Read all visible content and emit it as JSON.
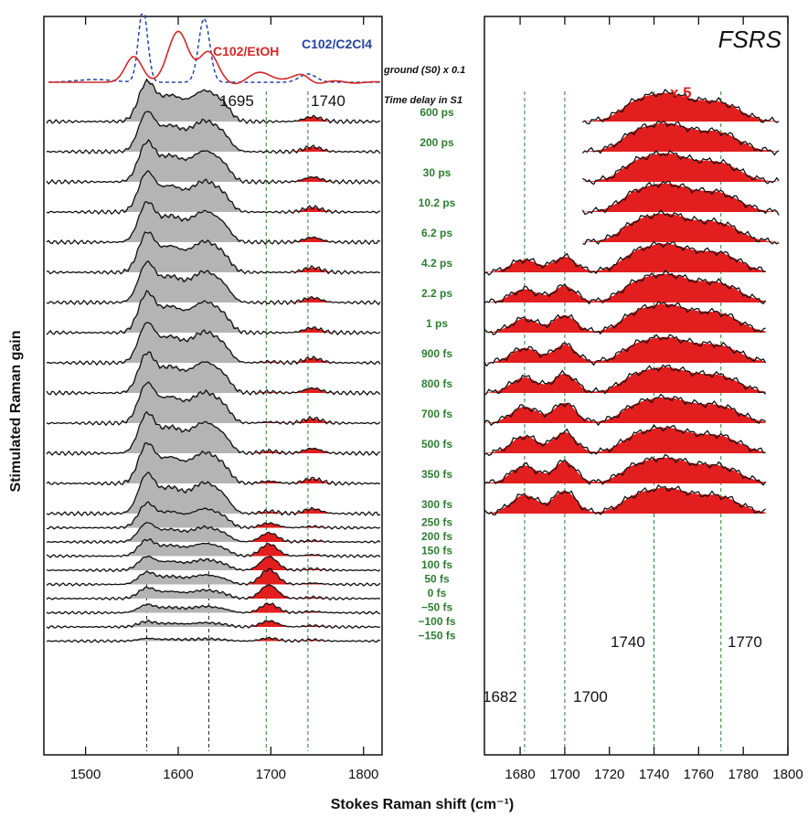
{
  "chart_data": [
    {
      "type": "line",
      "panel": "left",
      "xlabel": "Stokes Raman shift (cm⁻¹)",
      "ylabel": "Stimulated Raman gain",
      "xlim": [
        1455,
        1820
      ],
      "xticks": [
        1500,
        1600,
        1700,
        1800
      ],
      "legend": [
        {
          "name": "C102/EtOH",
          "color": "#d62728",
          "style": "solid"
        },
        {
          "name": "C102/C2Cl4",
          "color": "#2743a3",
          "style": "dashed"
        }
      ],
      "ground_state_label": "ground (S0) x 0.1",
      "time_delay_heading": "Time delay in S1",
      "peak_markers_cm1": [
        1566,
        1633,
        1695,
        1740
      ],
      "peak_labels": [
        "1695",
        "1740"
      ],
      "time_delays": [
        "600 ps",
        "200 ps",
        "30 ps",
        "10.2 ps",
        "6.2 ps",
        "4.2 ps",
        "2.2 ps",
        "1 ps",
        "900 fs",
        "800 fs",
        "700 fs",
        "500 fs",
        "350 fs",
        "300 fs",
        "250 fs",
        "200 fs",
        "150 fs",
        "100 fs",
        "50 fs",
        "0 fs",
        "−50 fs",
        "−100 fs",
        "−150 fs"
      ],
      "band_1566_rel": [
        1.0,
        1.0,
        1.0,
        1.0,
        1.0,
        1.0,
        1.0,
        1.0,
        1.0,
        1.0,
        1.0,
        1.0,
        1.0,
        1.0,
        0.9,
        0.7,
        0.6,
        0.5,
        0.45,
        0.4,
        0.3,
        0.2,
        0.1
      ],
      "band_1700_rel": [
        0.0,
        0.0,
        0.0,
        0.0,
        0.0,
        0.0,
        0.0,
        0.0,
        0.05,
        0.05,
        0.05,
        0.1,
        0.1,
        0.1,
        0.3,
        0.6,
        0.8,
        0.9,
        1.0,
        0.9,
        0.6,
        0.4,
        0.2
      ]
    },
    {
      "type": "area",
      "panel": "right",
      "title": "FSRS",
      "scale_factor": "x 5",
      "xlabel": "Stokes Raman shift (cm⁻¹)",
      "xlim": [
        1664,
        1800
      ],
      "xticks": [
        1680,
        1700,
        1720,
        1740,
        1760,
        1780,
        1800
      ],
      "peak_markers_cm1": [
        1682,
        1700,
        1740,
        1770
      ],
      "peak_labels": [
        "1682",
        "1700",
        "1740",
        "1770"
      ],
      "traces_shown_for": [
        "600 ps",
        "200 ps",
        "30 ps",
        "10.2 ps",
        "6.2 ps",
        "4.2 ps",
        "2.2 ps",
        "1 ps",
        "900 fs",
        "800 fs",
        "700 fs",
        "500 fs",
        "350 fs",
        "300 fs"
      ]
    }
  ]
}
